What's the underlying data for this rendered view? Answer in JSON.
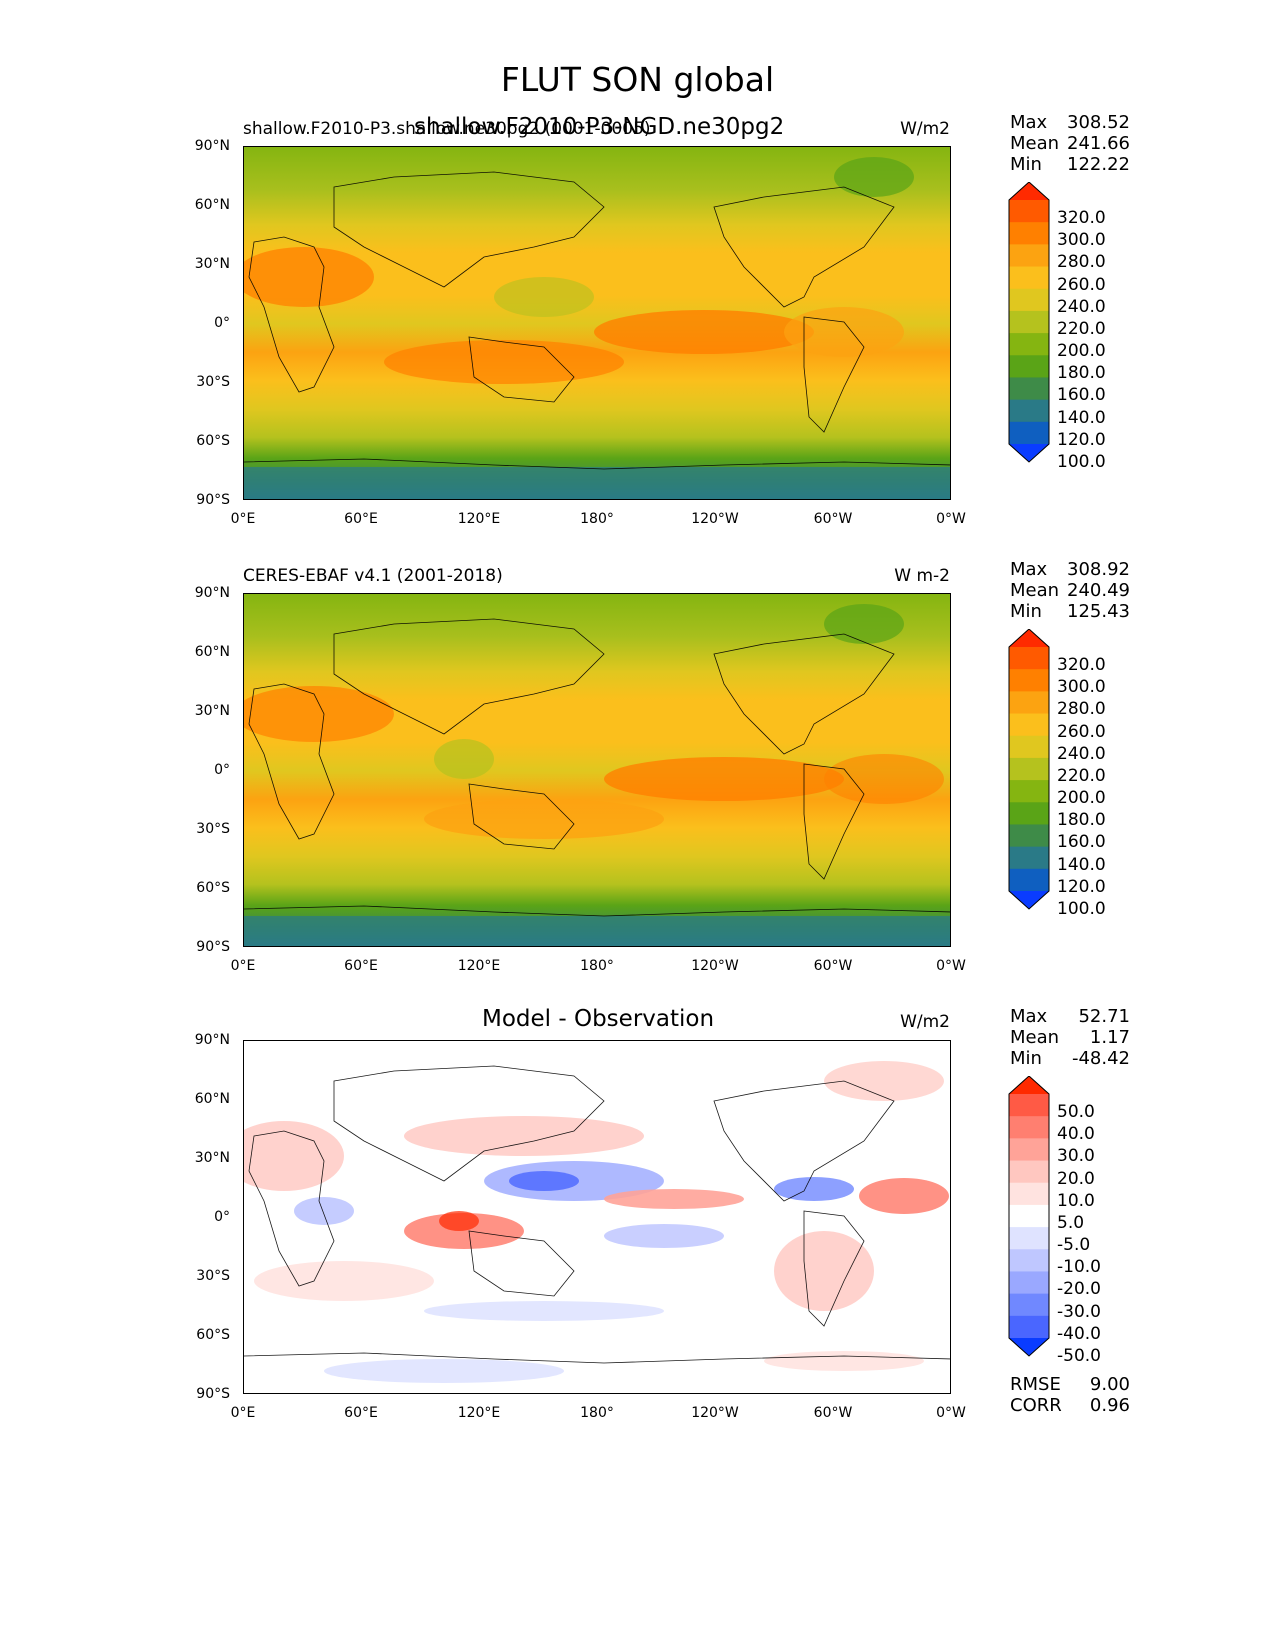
{
  "suptitle": "FLUT SON global",
  "panels": [
    {
      "id": "test",
      "title_left": "shallow.F2010-P3.shallow.ne30pg2 (0001-0005)",
      "title_center": "shallow.F2010-P3-NGD.ne30pg2",
      "title_right": "W/m2",
      "stats": [
        {
          "label": "Max",
          "value": "308.52"
        },
        {
          "label": "Mean",
          "value": "241.66"
        },
        {
          "label": "Min",
          "value": "122.22"
        }
      ],
      "colorbar_levels": [
        "320.0",
        "300.0",
        "280.0",
        "260.0",
        "240.0",
        "220.0",
        "200.0",
        "180.0",
        "160.0",
        "140.0",
        "120.0",
        "100.0"
      ],
      "colorbar_colors": [
        "#ff2a00",
        "#ff5a00",
        "#ff8000",
        "#fca311",
        "#fbbf1c",
        "#e0c71f",
        "#b5c21e",
        "#85b511",
        "#5aa417",
        "#3e8b48",
        "#2a7a87",
        "#0f5fc0",
        "#0a3cff"
      ]
    },
    {
      "id": "ref",
      "title_left": "CERES-EBAF v4.1 (2001-2018)",
      "title_center": "",
      "title_right": "W m-2",
      "stats": [
        {
          "label": "Max",
          "value": "308.92"
        },
        {
          "label": "Mean",
          "value": "240.49"
        },
        {
          "label": "Min",
          "value": "125.43"
        }
      ],
      "colorbar_levels": [
        "320.0",
        "300.0",
        "280.0",
        "260.0",
        "240.0",
        "220.0",
        "200.0",
        "180.0",
        "160.0",
        "140.0",
        "120.0",
        "100.0"
      ],
      "colorbar_colors": [
        "#ff2a00",
        "#ff5a00",
        "#ff8000",
        "#fca311",
        "#fbbf1c",
        "#e0c71f",
        "#b5c21e",
        "#85b511",
        "#5aa417",
        "#3e8b48",
        "#2a7a87",
        "#0f5fc0",
        "#0a3cff"
      ]
    },
    {
      "id": "diff",
      "title_left": "",
      "title_center": "Model - Observation",
      "title_right": "W/m2",
      "stats": [
        {
          "label": "Max",
          "value": "52.71"
        },
        {
          "label": "Mean",
          "value": "1.17"
        },
        {
          "label": "Min",
          "value": "-48.42"
        }
      ],
      "extra_stats": [
        {
          "label": "RMSE",
          "value": "9.00"
        },
        {
          "label": "CORR",
          "value": "0.96"
        }
      ],
      "colorbar_levels": [
        "50.0",
        "40.0",
        "30.0",
        "20.0",
        "10.0",
        "5.0",
        "-5.0",
        "-10.0",
        "-20.0",
        "-30.0",
        "-40.0",
        "-50.0"
      ],
      "colorbar_colors": [
        "#ff2a00",
        "#ff5a45",
        "#ff7f70",
        "#ffa398",
        "#ffc7c0",
        "#ffe3e0",
        "#ffffff",
        "#dfe3ff",
        "#bfc7ff",
        "#9aa8ff",
        "#7088ff",
        "#4a66ff",
        "#0a3cff"
      ]
    }
  ],
  "y_ticks": [
    "90°N",
    "60°N",
    "30°N",
    "0°",
    "30°S",
    "60°S",
    "90°S"
  ],
  "x_ticks": [
    "0°E",
    "60°E",
    "120°E",
    "180°",
    "120°W",
    "60°W",
    "0°W"
  ],
  "chart_data": [
    {
      "type": "heatmap",
      "title": "shallow.F2010-P3-NGD.ne30pg2",
      "ylabel": "",
      "xlabel": "",
      "xlim": [
        0,
        360
      ],
      "ylim": [
        -90,
        90
      ],
      "units": "W/m2",
      "zonal_profile_lat": [
        90,
        60,
        30,
        0,
        -30,
        -60,
        -90
      ],
      "zonal_profile_value": [
        190,
        205,
        255,
        240,
        260,
        205,
        140
      ],
      "max": 308.52,
      "mean": 241.66,
      "min": 122.22
    },
    {
      "type": "heatmap",
      "title": "CERES-EBAF v4.1 (2001-2018)",
      "ylabel": "",
      "xlabel": "",
      "xlim": [
        0,
        360
      ],
      "ylim": [
        -90,
        90
      ],
      "units": "W m-2",
      "zonal_profile_lat": [
        90,
        60,
        30,
        0,
        -30,
        -60,
        -90
      ],
      "zonal_profile_value": [
        190,
        205,
        255,
        245,
        260,
        210,
        140
      ],
      "max": 308.92,
      "mean": 240.49,
      "min": 125.43
    },
    {
      "type": "heatmap",
      "title": "Model - Observation",
      "ylabel": "",
      "xlabel": "",
      "xlim": [
        0,
        360
      ],
      "ylim": [
        -90,
        90
      ],
      "units": "W/m2",
      "max": 52.71,
      "mean": 1.17,
      "min": -48.42,
      "rmse": 9.0,
      "corr": 0.96
    }
  ]
}
